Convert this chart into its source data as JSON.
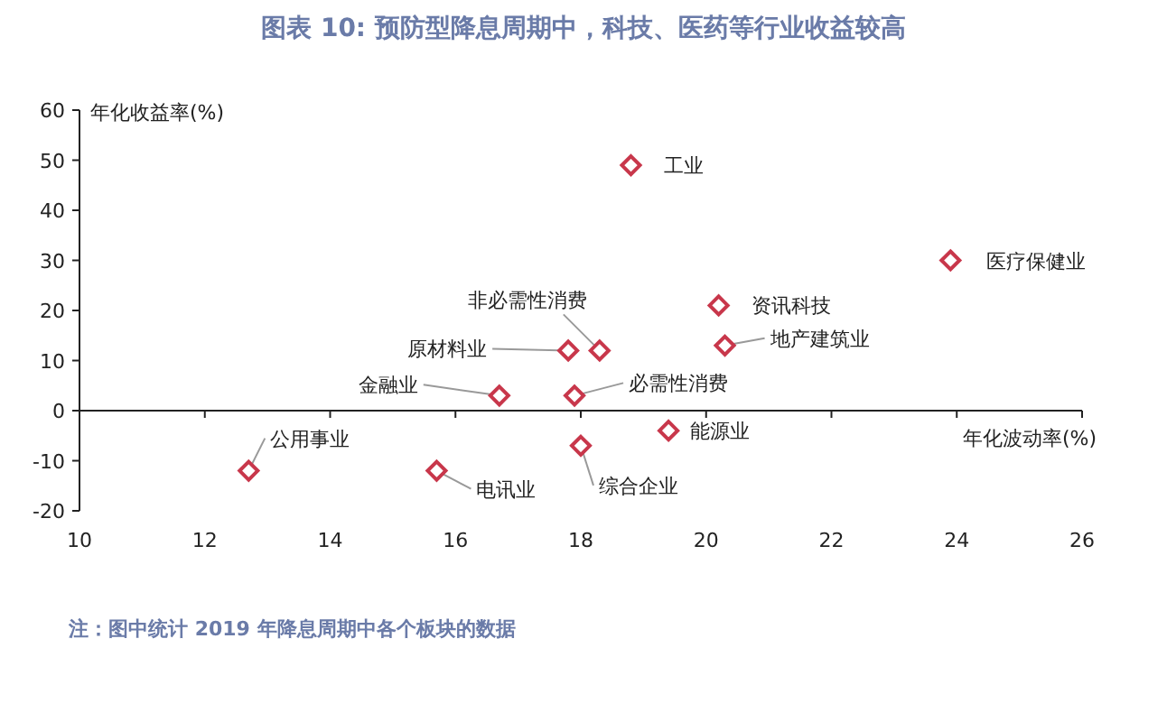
{
  "chart_data": {
    "type": "scatter",
    "title": "图表 10: 预防型降息周期中，科技、医药等行业收益较高",
    "xlabel": "年化波动率(%)",
    "ylabel": "年化收益率(%)",
    "x": [
      18.8,
      23.9,
      20.2,
      20.3,
      18.3,
      17.8,
      16.7,
      17.9,
      19.4,
      18.0,
      12.7,
      15.7
    ],
    "values": [
      49,
      30,
      21,
      13,
      12,
      12,
      3,
      3,
      -4,
      -7,
      -12,
      -12
    ],
    "color": "#c8374b",
    "marker": "diamond",
    "xlim": [
      10,
      26
    ],
    "xticks": [
      10,
      12,
      14,
      16,
      18,
      20,
      22,
      24,
      26
    ],
    "ylim": [
      -20,
      60
    ],
    "yticks": [
      -20,
      -10,
      0,
      10,
      20,
      30,
      40,
      50,
      60
    ],
    "annotations": [
      {
        "text": "工业",
        "x": 18.8,
        "y": 49
      },
      {
        "text": "医疗保健业",
        "x": 23.9,
        "y": 30
      },
      {
        "text": "资讯科技",
        "x": 20.2,
        "y": 21
      },
      {
        "text": "地产建筑业",
        "x": 20.3,
        "y": 13
      },
      {
        "text": "非必需性消费",
        "x": 18.3,
        "y": 12
      },
      {
        "text": "原材料业",
        "x": 17.8,
        "y": 12
      },
      {
        "text": "金融业",
        "x": 16.7,
        "y": 3
      },
      {
        "text": "必需性消费",
        "x": 17.9,
        "y": 3
      },
      {
        "text": "能源业",
        "x": 19.4,
        "y": -4
      },
      {
        "text": "综合企业",
        "x": 18.0,
        "y": -7
      },
      {
        "text": "公用事业",
        "x": 12.7,
        "y": -12
      },
      {
        "text": "电讯业",
        "x": 15.7,
        "y": -12
      },
      "注：图中统计 2019 年降息周期中各个板块的数据"
    ]
  }
}
